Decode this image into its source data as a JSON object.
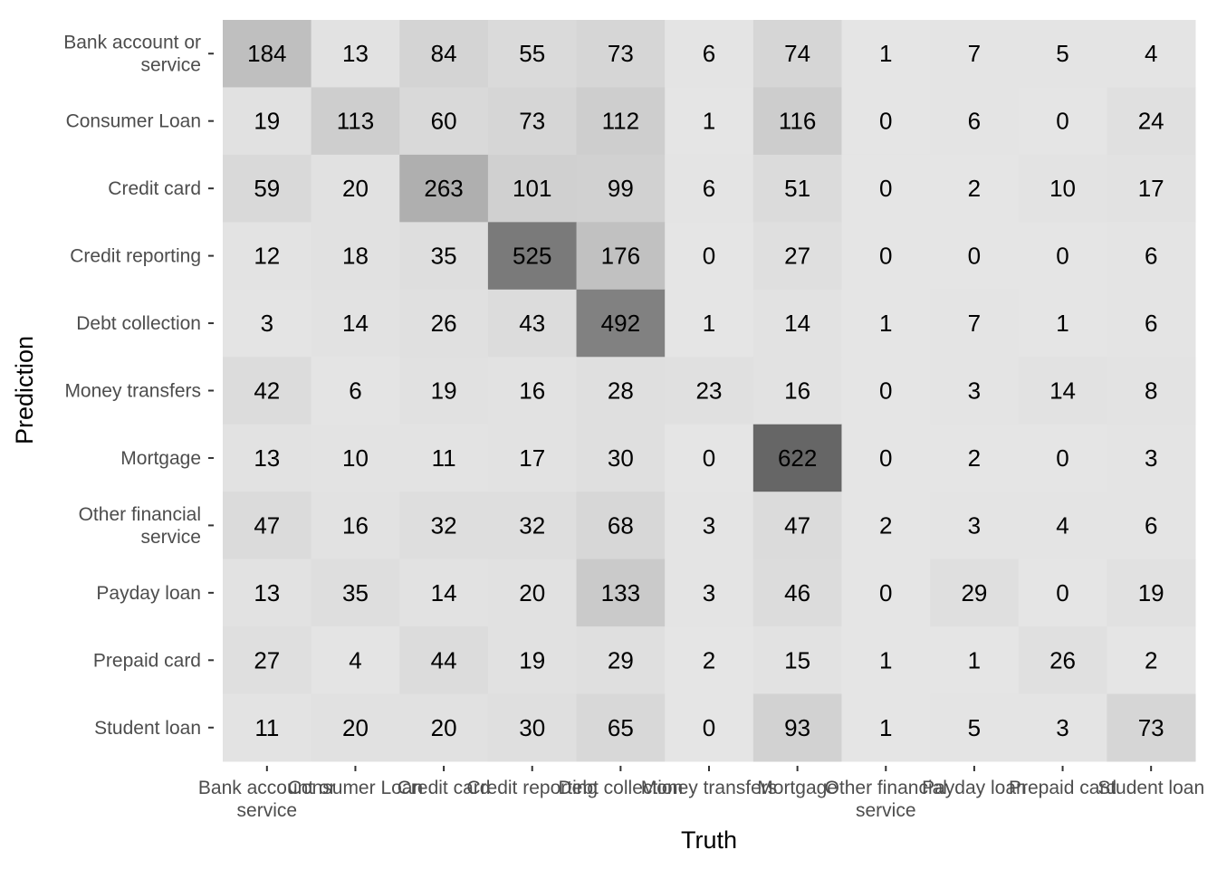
{
  "chart_data": {
    "type": "heatmap",
    "xlabel": "Truth",
    "ylabel": "Prediction",
    "x_categories": [
      [
        "Bank account or",
        "service"
      ],
      [
        "Consumer Loan"
      ],
      [
        "Credit card"
      ],
      [
        "Credit reporting"
      ],
      [
        "Debt collection"
      ],
      [
        "Money transfers"
      ],
      [
        "Mortgage"
      ],
      [
        "Other financial",
        "service"
      ],
      [
        "Payday loan"
      ],
      [
        "Prepaid card"
      ],
      [
        "Student loan"
      ]
    ],
    "y_categories": [
      [
        "Bank account or",
        "service"
      ],
      [
        "Consumer Loan"
      ],
      [
        "Credit card"
      ],
      [
        "Credit reporting"
      ],
      [
        "Debt collection"
      ],
      [
        "Money transfers"
      ],
      [
        "Mortgage"
      ],
      [
        "Other financial",
        "service"
      ],
      [
        "Payday loan"
      ],
      [
        "Prepaid card"
      ],
      [
        "Student loan"
      ]
    ],
    "values": [
      [
        184,
        13,
        84,
        55,
        73,
        6,
        74,
        1,
        7,
        5,
        4
      ],
      [
        19,
        113,
        60,
        73,
        112,
        1,
        116,
        0,
        6,
        0,
        24
      ],
      [
        59,
        20,
        263,
        101,
        99,
        6,
        51,
        0,
        2,
        10,
        17
      ],
      [
        12,
        18,
        35,
        525,
        176,
        0,
        27,
        0,
        0,
        0,
        6
      ],
      [
        3,
        14,
        26,
        43,
        492,
        1,
        14,
        1,
        7,
        1,
        6
      ],
      [
        42,
        6,
        19,
        16,
        28,
        23,
        16,
        0,
        3,
        14,
        8
      ],
      [
        13,
        10,
        11,
        17,
        30,
        0,
        622,
        0,
        2,
        0,
        3
      ],
      [
        47,
        16,
        32,
        32,
        68,
        3,
        47,
        2,
        3,
        4,
        6
      ],
      [
        13,
        35,
        14,
        20,
        133,
        3,
        46,
        0,
        29,
        0,
        19
      ],
      [
        27,
        4,
        44,
        19,
        29,
        2,
        15,
        1,
        1,
        26,
        2
      ],
      [
        11,
        20,
        20,
        30,
        65,
        0,
        93,
        1,
        5,
        3,
        73
      ]
    ],
    "color_scale": {
      "low": "#e5e5e5",
      "high": "#666666"
    },
    "legend": "none",
    "grid": false
  }
}
